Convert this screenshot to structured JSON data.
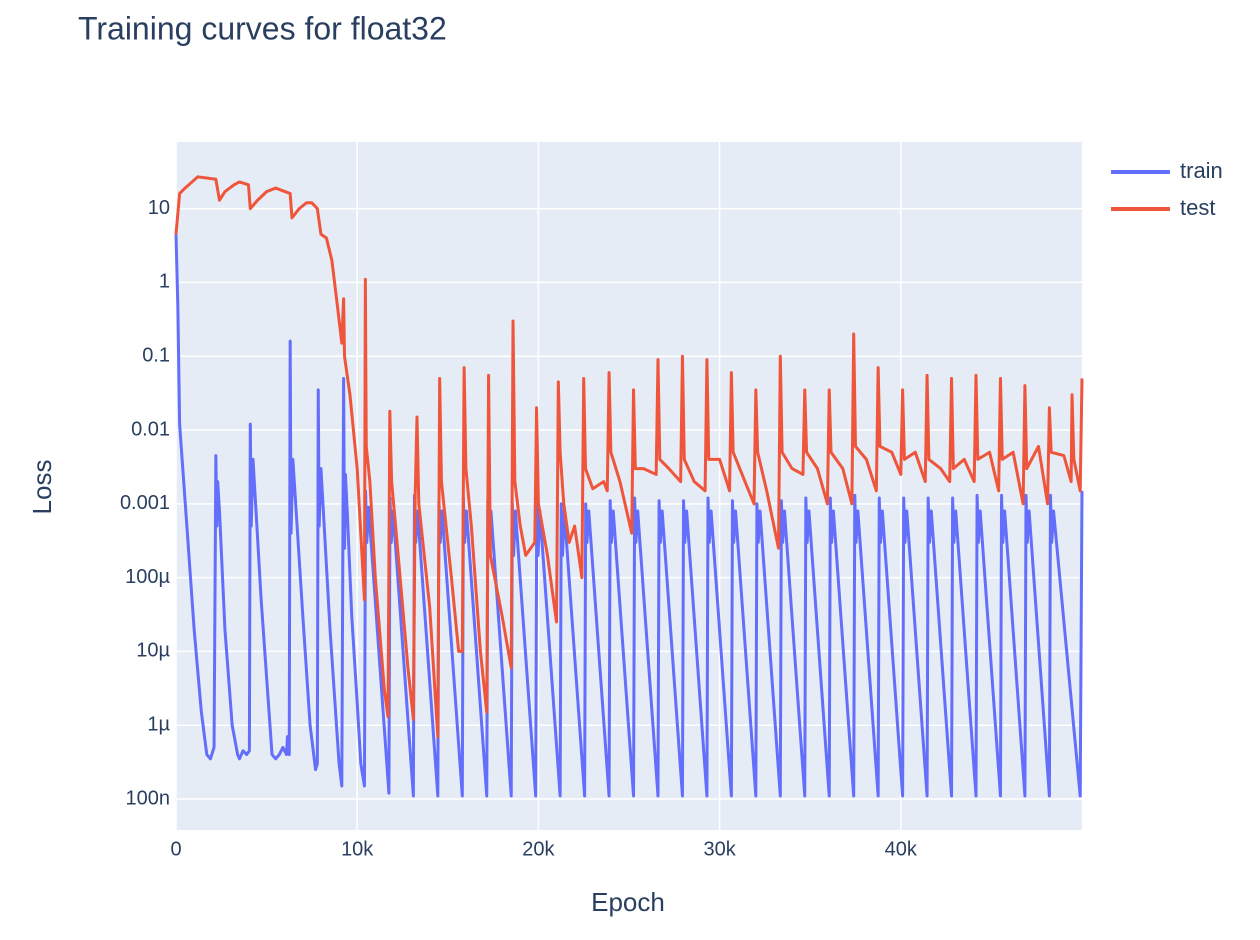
{
  "chart_data": {
    "type": "line",
    "title": "Training curves for float32",
    "x_label": "Epoch",
    "y_label": "Loss",
    "y_scale": "log",
    "grid": true,
    "legend_position": "right",
    "xlim": [
      0,
      50000
    ],
    "ylim": [
      3.8e-08,
      80
    ],
    "xticks": [
      0,
      {
        "value": 10000,
        "label": "10k"
      },
      {
        "value": 20000,
        "label": "20k"
      },
      {
        "value": 30000,
        "label": "30k"
      },
      {
        "value": 40000,
        "label": "40k"
      }
    ],
    "yticks": [
      {
        "value": 1e-07,
        "label": "100n"
      },
      {
        "value": 1e-06,
        "label": "1µ"
      },
      {
        "value": 1e-05,
        "label": "10µ"
      },
      {
        "value": 0.0001,
        "label": "100µ"
      },
      0.001,
      0.01,
      0.1,
      1,
      10
    ],
    "series": [
      {
        "name": "train",
        "color": "#636efa",
        "x": [
          0,
          100,
          200,
          600,
          1000,
          1400,
          1700,
          1900,
          2100,
          2200,
          2250,
          2300,
          2400,
          2700,
          3100,
          3400,
          3500,
          3700,
          3900,
          4050,
          4100,
          4150,
          4250,
          4700,
          5100,
          5300,
          5500,
          5700,
          5900,
          6100,
          6150,
          6250,
          6300,
          6350,
          6450,
          7000,
          7400,
          7600,
          7700,
          7800,
          7850,
          7900,
          8000,
          8500,
          9000,
          9150,
          9250,
          9300,
          9350,
          9450,
          9700,
          10000,
          10200,
          10400,
          10460,
          10530,
          10630,
          11750,
          11810,
          11880,
          11980,
          13100,
          13160,
          13230,
          13330,
          14450,
          14510,
          14580,
          14680,
          15800,
          15860,
          15930,
          16030,
          17150,
          17210,
          17280,
          17380,
          18500,
          18560,
          18630,
          18730,
          19850,
          19910,
          19980,
          20080,
          21200,
          21260,
          21330,
          21430,
          22550,
          22610,
          22680,
          22780,
          23900,
          23960,
          24030,
          24130,
          25250,
          25310,
          25380,
          25480,
          26600,
          26660,
          26730,
          26830,
          27950,
          28010,
          28080,
          28180,
          29300,
          29360,
          29430,
          29530,
          30650,
          30710,
          30780,
          30880,
          32000,
          32060,
          32130,
          32230,
          33350,
          33410,
          33480,
          33580,
          34700,
          34760,
          34830,
          34930,
          36050,
          36110,
          36180,
          36280,
          37400,
          37460,
          37530,
          37630,
          38750,
          38810,
          38880,
          38980,
          40100,
          40160,
          40230,
          40330,
          41450,
          41510,
          41580,
          41680,
          42800,
          42860,
          42930,
          43030,
          44150,
          44210,
          44280,
          44380,
          45500,
          45560,
          45630,
          45730,
          46850,
          46910,
          46980,
          47080,
          48200,
          48260,
          48330,
          48430,
          49900,
          50000
        ],
        "values": [
          4.5,
          0.5,
          0.012,
          0.0005,
          2e-05,
          1.5e-06,
          4e-07,
          3.5e-07,
          5e-07,
          0.0045,
          0.0005,
          0.002,
          0.0008,
          2e-05,
          1e-06,
          4e-07,
          3.5e-07,
          4.5e-07,
          4e-07,
          4.5e-07,
          0.012,
          0.0005,
          0.004,
          5e-05,
          2e-06,
          4e-07,
          3.5e-07,
          4e-07,
          5e-07,
          4e-07,
          7e-07,
          4e-07,
          0.16,
          0.0004,
          0.004,
          3e-05,
          1e-06,
          4e-07,
          2.5e-07,
          3e-07,
          0.035,
          0.0005,
          0.003,
          2e-05,
          3e-07,
          1.5e-07,
          0.05,
          0.00025,
          0.0025,
          0.0008,
          3e-05,
          2e-06,
          3e-07,
          1.5e-07,
          0.0015,
          0.0003,
          0.0009,
          1.2e-07,
          0.0012,
          0.0003,
          0.0008,
          1.1e-07,
          0.0013,
          0.0003,
          0.0008,
          1.1e-07,
          0.0011,
          0.0003,
          0.0008,
          1.1e-07,
          0.0012,
          0.0003,
          0.0008,
          1.1e-07,
          0.0011,
          0.0003,
          0.0008,
          1.1e-07,
          0.001,
          0.0002,
          0.0008,
          1.1e-07,
          0.001,
          0.0002,
          0.0008,
          1.1e-07,
          0.001,
          0.0002,
          0.0008,
          1.1e-07,
          0.001,
          0.0003,
          0.0008,
          1.1e-07,
          0.0011,
          0.0003,
          0.0008,
          1.1e-07,
          0.0012,
          0.0003,
          0.0008,
          1.1e-07,
          0.0011,
          0.0003,
          0.0008,
          1.1e-07,
          0.0011,
          0.0003,
          0.0008,
          1.1e-07,
          0.0012,
          0.0003,
          0.0008,
          1.1e-07,
          0.0011,
          0.0003,
          0.0008,
          1.1e-07,
          0.001,
          0.0003,
          0.0008,
          1.1e-07,
          0.0011,
          0.0003,
          0.0008,
          1.1e-07,
          0.0012,
          0.0003,
          0.0008,
          1.1e-07,
          0.0012,
          0.0003,
          0.0008,
          1.1e-07,
          0.0013,
          0.0003,
          0.0008,
          1.1e-07,
          0.0012,
          0.0003,
          0.0008,
          1.1e-07,
          0.0012,
          0.0003,
          0.0008,
          1.1e-07,
          0.0012,
          0.0003,
          0.0008,
          1.1e-07,
          0.0012,
          0.0003,
          0.0008,
          1.1e-07,
          0.0013,
          0.0003,
          0.0008,
          1.1e-07,
          0.0013,
          0.0003,
          0.0008,
          1.1e-07,
          0.0013,
          0.0003,
          0.0008,
          1.1e-07,
          0.0013,
          0.0003,
          0.0008,
          1.1e-07,
          0.0015
        ]
      },
      {
        "name": "test",
        "color": "#EF553B",
        "x": [
          0,
          200,
          500,
          1200,
          2200,
          2400,
          2700,
          3200,
          3500,
          4000,
          4100,
          4500,
          5000,
          5500,
          6300,
          6400,
          6800,
          7200,
          7500,
          7800,
          8000,
          8300,
          8600,
          8900,
          9150,
          9250,
          9300,
          9600,
          10000,
          10400,
          10450,
          10500,
          10700,
          11000,
          11500,
          11700,
          11800,
          11900,
          12200,
          12800,
          13100,
          13200,
          13300,
          13400,
          14000,
          14450,
          14550,
          14650,
          15200,
          15600,
          15800,
          15900,
          16000,
          16300,
          16800,
          17150,
          17250,
          17350,
          18000,
          18500,
          18600,
          18700,
          19000,
          19300,
          19800,
          19900,
          20000,
          20500,
          21000,
          21100,
          21200,
          21400,
          21700,
          22000,
          22400,
          22500,
          22600,
          23000,
          23600,
          23800,
          23900,
          24000,
          24500,
          25150,
          25250,
          25350,
          25800,
          26500,
          26600,
          26700,
          27200,
          27850,
          27950,
          28050,
          28600,
          29200,
          29300,
          29400,
          30000,
          30550,
          30650,
          30750,
          31400,
          31900,
          32000,
          32100,
          32600,
          33250,
          33350,
          33450,
          34000,
          34600,
          34700,
          34800,
          35400,
          35950,
          36050,
          36150,
          36800,
          37300,
          37400,
          37500,
          38100,
          38650,
          38750,
          38850,
          39500,
          40000,
          40100,
          40200,
          40800,
          41350,
          41450,
          41550,
          42200,
          42700,
          42800,
          42900,
          43500,
          44050,
          44150,
          44250,
          44900,
          45400,
          45500,
          45600,
          46200,
          46750,
          46850,
          46950,
          47600,
          48100,
          48200,
          48300,
          49000,
          49400,
          49450,
          49550,
          49900,
          50000
        ],
        "values": [
          4.5,
          16,
          19,
          27,
          25,
          13,
          17,
          21,
          23,
          21,
          10,
          13,
          17,
          19,
          16,
          7.5,
          10,
          12,
          12,
          10,
          4.5,
          4,
          2,
          0.5,
          0.15,
          0.6,
          0.1,
          0.03,
          0.003,
          5e-05,
          1.1,
          0.006,
          0.002,
          0.0001,
          3e-06,
          1.3e-06,
          0.018,
          0.002,
          0.0003,
          6e-06,
          1.2e-06,
          0.0013,
          0.015,
          0.001,
          4e-05,
          7e-07,
          0.05,
          0.002,
          0.0001,
          1e-05,
          1e-05,
          0.07,
          0.003,
          0.0005,
          1e-05,
          1.5e-06,
          0.055,
          0.0002,
          3e-05,
          6e-06,
          0.3,
          0.002,
          0.0005,
          0.0002,
          0.0003,
          0.02,
          0.001,
          0.0002,
          2.5e-05,
          0.045,
          0.005,
          0.001,
          0.0003,
          0.0005,
          0.0001,
          0.05,
          0.003,
          0.0016,
          0.002,
          0.0015,
          0.06,
          0.005,
          0.002,
          0.0004,
          0.035,
          0.003,
          0.003,
          0.0025,
          0.09,
          0.004,
          0.003,
          0.002,
          0.1,
          0.004,
          0.002,
          0.0015,
          0.09,
          0.004,
          0.004,
          0.0015,
          0.06,
          0.005,
          0.002,
          0.001,
          0.035,
          0.005,
          0.0015,
          0.00025,
          0.1,
          0.005,
          0.003,
          0.0025,
          0.035,
          0.005,
          0.003,
          0.001,
          0.035,
          0.005,
          0.003,
          0.001,
          0.2,
          0.006,
          0.004,
          0.0015,
          0.07,
          0.006,
          0.005,
          0.0025,
          0.035,
          0.004,
          0.005,
          0.002,
          0.055,
          0.004,
          0.003,
          0.002,
          0.05,
          0.003,
          0.004,
          0.002,
          0.055,
          0.004,
          0.005,
          0.0015,
          0.05,
          0.004,
          0.005,
          0.001,
          0.04,
          0.003,
          0.006,
          0.001,
          0.02,
          0.005,
          0.0045,
          0.002,
          0.03,
          0.004,
          0.0015,
          0.05
        ]
      }
    ]
  }
}
